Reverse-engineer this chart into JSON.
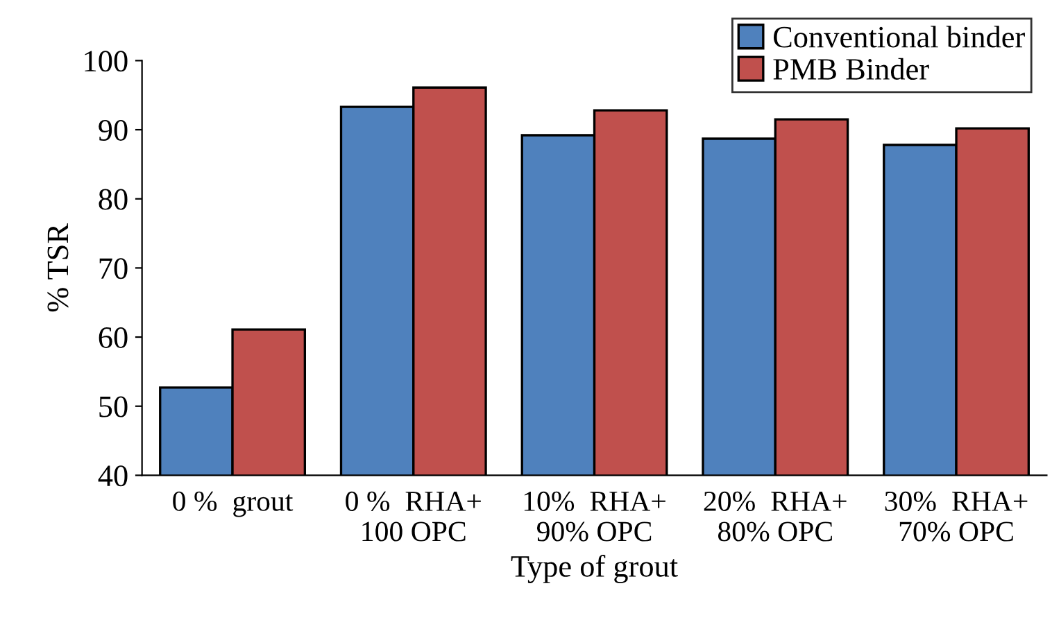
{
  "chart_data": {
    "type": "bar",
    "xlabel": "Type of grout",
    "ylabel": "% TSR",
    "categories": [
      "0 %  grout",
      "0 %  RHA+\n100 OPC",
      "10%  RHA+\n90% OPC",
      "20%  RHA+\n80% OPC",
      "30%  RHA+\n70% OPC"
    ],
    "series": [
      {
        "name": "Conventional binder",
        "color": "#4f81bd",
        "values": [
          52.7,
          93.3,
          89.2,
          88.7,
          87.8
        ]
      },
      {
        "name": "PMB Binder",
        "color": "#c0504d",
        "values": [
          61.1,
          96.1,
          92.8,
          91.5,
          90.2
        ]
      }
    ],
    "ylim": [
      40,
      100
    ],
    "yticks": [
      40,
      50,
      60,
      70,
      80,
      90,
      100
    ],
    "grid": false,
    "legend": "top right"
  }
}
